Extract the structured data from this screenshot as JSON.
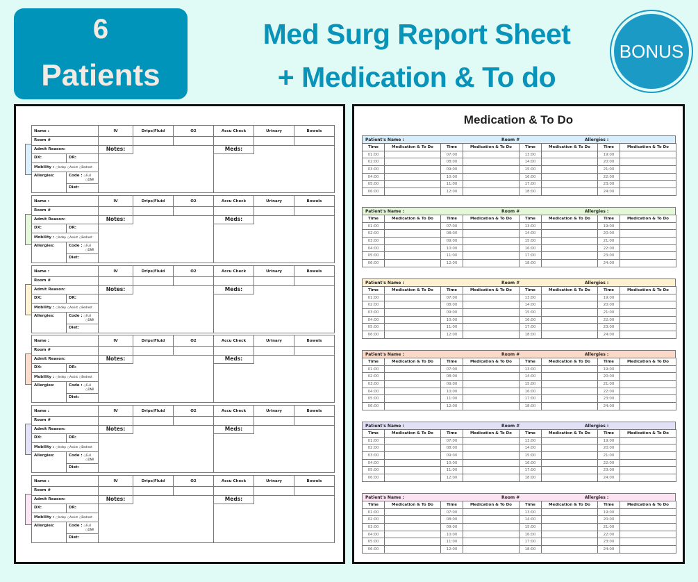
{
  "badge": {
    "number": "6",
    "label": "Patients"
  },
  "title": {
    "line1": "Med Surg Report Sheet",
    "line2": "+ Medication & To do"
  },
  "report_sheet": {
    "labels": {
      "name": "Name :",
      "iv": "IV",
      "drips": "Drips/Fluid",
      "o2": "O2",
      "accu": "Accu Check",
      "urinary": "Urinary",
      "bowels": "Bowels",
      "room": "Room #",
      "admit": "Admit Reason:",
      "notes": "Notes:",
      "meds": "Meds:",
      "dx": "DX:",
      "dr": "DR:",
      "mobility": "Mobility :",
      "indep": "Indep",
      "bedrest": "Bedrest",
      "assist": "Assist",
      "allergies": "Allergies:",
      "code": "Code :",
      "full": "Full",
      "dnr": "DNR",
      "diet": "Diet:"
    },
    "tab_colors": [
      "#dcefff",
      "#e6f8dc",
      "#fff3d4",
      "#fcdccc",
      "#e4e2f8",
      "#fce6f6"
    ]
  },
  "med_sheet": {
    "title": "Medication & To Do",
    "labels": {
      "patient": "Patient's Name :",
      "room": "Room #",
      "allergies": "Allergies :",
      "time": "Time",
      "med": "Medication & To Do"
    },
    "times": [
      [
        "01:00",
        "07:00",
        "13:00",
        "19:00"
      ],
      [
        "02:00",
        "08:00",
        "14:00",
        "20:00"
      ],
      [
        "03:00",
        "09:00",
        "15:00",
        "21:00"
      ],
      [
        "04:00",
        "10:00",
        "16:00",
        "22:00"
      ],
      [
        "05:00",
        "11:00",
        "17:00",
        "23:00"
      ],
      [
        "06:00",
        "12:00",
        "18:00",
        "24:00"
      ]
    ],
    "header_colors": [
      "#d8eefc",
      "#e4f7d8",
      "#fdf1cf",
      "#fbd9c8",
      "#e2e0f7",
      "#fbe3f4"
    ]
  },
  "bonus": {
    "label": "BONUS"
  }
}
